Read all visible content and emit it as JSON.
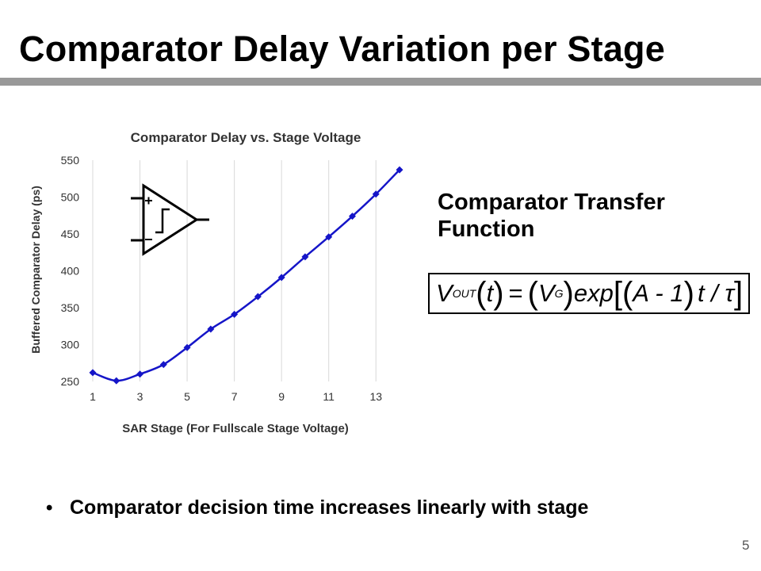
{
  "slide": {
    "title": "Comparator Delay Variation per Stage",
    "page_number": "5"
  },
  "transfer": {
    "heading_line1": "Comparator Transfer",
    "heading_line2": "Function",
    "equation": {
      "v": "V",
      "out_sub": "OUT",
      "t": "t",
      "eq": "=",
      "vg": "V",
      "g_sub": "G",
      "exp": "exp",
      "body": "A - 1",
      "tail": "t / τ"
    }
  },
  "bullet": {
    "text": "Comparator decision time increases linearly with stage"
  },
  "colors": {
    "series": "#1515c8",
    "rule": "#999999",
    "grid": "#d9d9d9"
  },
  "icons": {
    "opamp": "comparator-symbol-icon"
  },
  "chart_data": {
    "type": "line",
    "title": "Comparator Delay vs. Stage Voltage",
    "xlabel": "SAR Stage (For Fullscale Stage Voltage)",
    "ylabel": "Buffered Comparator Delay (ps)",
    "x": [
      1,
      2,
      3,
      4,
      5,
      6,
      7,
      8,
      9,
      10,
      11,
      12,
      13,
      14
    ],
    "x_ticks": [
      "1",
      "3",
      "5",
      "7",
      "9",
      "11",
      "13"
    ],
    "x_tick_values": [
      1,
      3,
      5,
      7,
      9,
      11,
      13
    ],
    "xlim": [
      1,
      14
    ],
    "ylim": [
      250,
      550
    ],
    "y_ticks": [
      250,
      300,
      350,
      400,
      450,
      500,
      550
    ],
    "grid": "vertical",
    "series": [
      {
        "values": [
          262,
          251,
          260,
          273,
          296,
          321,
          341,
          365,
          391,
          419,
          446,
          474,
          504,
          537
        ]
      }
    ]
  }
}
